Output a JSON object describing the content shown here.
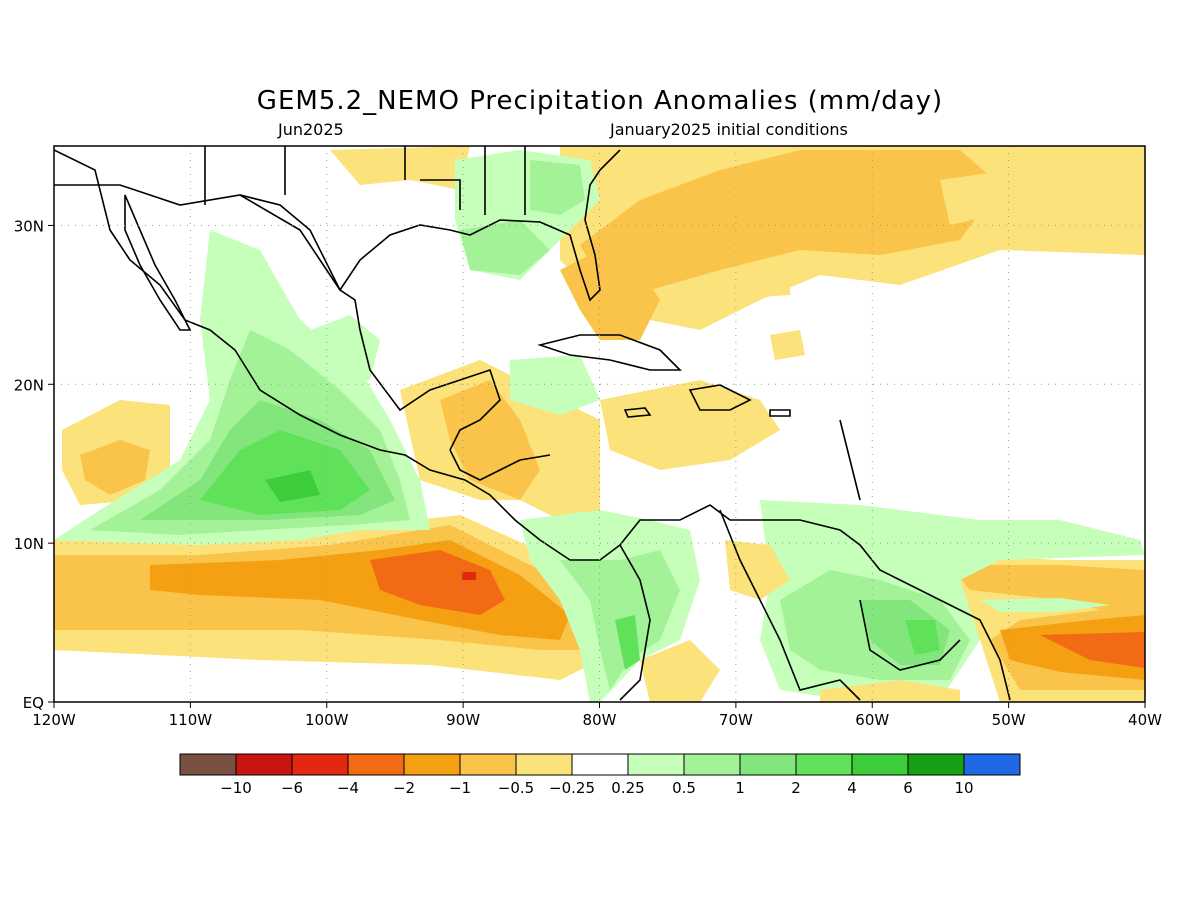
{
  "title": "GEM5.2_NEMO Precipitation Anomalies (mm/day)",
  "subtitle_left": "Jun2025",
  "subtitle_right": "January2025 initial conditions",
  "map": {
    "lon_range": [
      -120,
      -40
    ],
    "lat_range": [
      0,
      35
    ],
    "lon_ticks": [
      "120W",
      "110W",
      "100W",
      "90W",
      "80W",
      "70W",
      "60W",
      "50W",
      "40W"
    ],
    "lat_ticks": [
      "EQ",
      "10N",
      "20N",
      "30N"
    ],
    "grid": true
  },
  "colorbar": {
    "colors": [
      "#7a5040",
      "#c8150f",
      "#e2290f",
      "#f26b14",
      "#f5a012",
      "#f9c449",
      "#fce27a",
      "#ffffff",
      "#c5ffba",
      "#a3f298",
      "#82e67c",
      "#5fe25a",
      "#3dcc3a",
      "#16a015",
      "#1f69e6"
    ],
    "labels": [
      "−10",
      "−6",
      "−4",
      "−2",
      "−1",
      "−0.5",
      "−0.25",
      "0.25",
      "0.5",
      "1",
      "2",
      "4",
      "6",
      "10"
    ]
  },
  "colors": {
    "orange_mid": "#f9c449",
    "orange": "#f5a012",
    "orange_dark": "#f26b14",
    "red": "#e2290f",
    "yellow": "#fce27a",
    "green_light": "#c5ffba",
    "green_2": "#a3f298",
    "green_3": "#82e67c",
    "green_4": "#5fe25a",
    "green_5": "#3dcc3a",
    "coast": "#000000"
  }
}
